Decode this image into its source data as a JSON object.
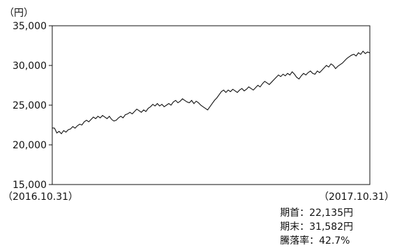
{
  "chart_data": {
    "type": "line",
    "unit_label": "（円）",
    "ylim": [
      15000,
      35000
    ],
    "y_ticks": [
      15000,
      20000,
      25000,
      30000,
      35000
    ],
    "y_tick_labels": [
      "15,000",
      "20,000",
      "25,000",
      "30,000",
      "35,000"
    ],
    "x_start_label": "（2016.10.31）",
    "x_end_label": "（2017.10.31）",
    "grid": false,
    "series": [
      {
        "values": [
          22135,
          22100,
          21500,
          21700,
          21400,
          21800,
          21600,
          21900,
          22000,
          22300,
          22100,
          22400,
          22600,
          22500,
          22900,
          23100,
          22900,
          23200,
          23500,
          23300,
          23600,
          23400,
          23700,
          23500,
          23300,
          23600,
          23200,
          23000,
          23100,
          23400,
          23600,
          23400,
          23800,
          23900,
          24100,
          23900,
          24200,
          24500,
          24300,
          24100,
          24400,
          24200,
          24600,
          24800,
          25100,
          24900,
          25200,
          24900,
          25100,
          24800,
          25000,
          25200,
          25000,
          25400,
          25600,
          25300,
          25500,
          25800,
          25600,
          25400,
          25300,
          25600,
          25200,
          25500,
          25300,
          25000,
          24800,
          24600,
          24400,
          24800,
          25200,
          25600,
          25900,
          26300,
          26700,
          26900,
          26600,
          26900,
          26700,
          27000,
          26800,
          26600,
          26900,
          27100,
          26800,
          27000,
          27300,
          27100,
          26900,
          27200,
          27500,
          27300,
          27700,
          28000,
          27800,
          27600,
          27900,
          28200,
          28500,
          28800,
          28600,
          28900,
          28700,
          29000,
          28800,
          29200,
          28900,
          28500,
          28300,
          28700,
          29000,
          28800,
          29100,
          29300,
          29000,
          28900,
          29300,
          29100,
          29400,
          29700,
          30000,
          29800,
          30200,
          30000,
          29600,
          29900,
          30100,
          30300,
          30600,
          30900,
          31100,
          31300,
          31400,
          31200,
          31600,
          31400,
          31800,
          31500,
          31700,
          31582
        ]
      }
    ]
  },
  "summary": {
    "start": "期首：22,135円",
    "end": "期末：31,582円",
    "change": "騰落率：42.7%"
  }
}
